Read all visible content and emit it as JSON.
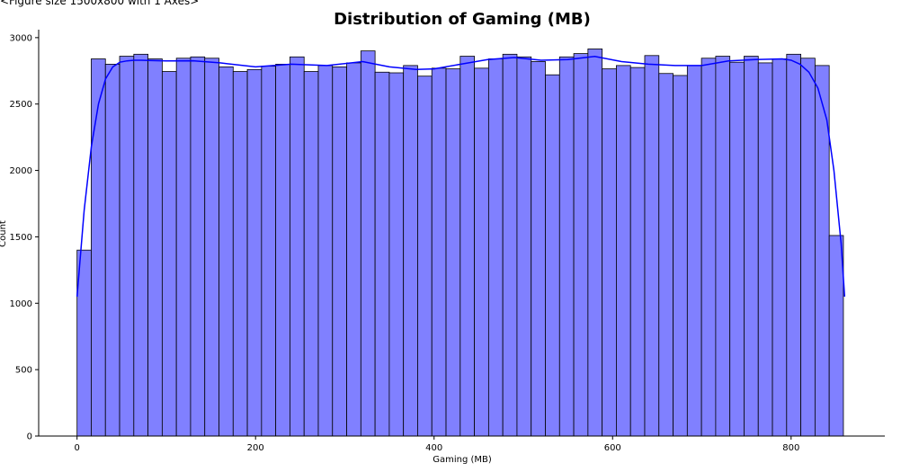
{
  "figure_label": "<Figure size 1500x800 with 1 Axes>",
  "chart_data": {
    "type": "bar",
    "title": "Distribution of Gaming (MB)",
    "xlabel": "Gaming (MB)",
    "ylabel": "Count",
    "xlim": [
      -43,
      905
    ],
    "ylim": [
      0,
      3060
    ],
    "xticks": [
      0,
      200,
      400,
      600,
      800
    ],
    "yticks": [
      0,
      500,
      1000,
      1500,
      2000,
      2500,
      3000
    ],
    "grid": false,
    "bar_color": "#8080ff",
    "bar_edge_color": "#000000",
    "kde_color": "#0000ff",
    "bins": {
      "start": 0,
      "width": 15.9,
      "counts": [
        1400,
        2840,
        2800,
        2860,
        2875,
        2840,
        2745,
        2845,
        2855,
        2845,
        2780,
        2745,
        2760,
        2785,
        2800,
        2855,
        2745,
        2790,
        2780,
        2810,
        2900,
        2740,
        2735,
        2790,
        2710,
        2770,
        2765,
        2860,
        2770,
        2840,
        2875,
        2855,
        2820,
        2720,
        2855,
        2880,
        2915,
        2765,
        2790,
        2775,
        2865,
        2730,
        2715,
        2790,
        2845,
        2860,
        2815,
        2860,
        2810,
        2840,
        2875,
        2845,
        2790,
        1510
      ]
    },
    "kde": {
      "x": [
        0,
        8,
        16,
        24,
        32,
        40,
        48,
        56,
        64,
        72,
        80,
        100,
        130,
        160,
        200,
        240,
        280,
        320,
        350,
        380,
        400,
        430,
        460,
        490,
        520,
        550,
        580,
        610,
        640,
        670,
        700,
        730,
        760,
        790,
        800,
        810,
        820,
        830,
        840,
        848,
        856,
        860
      ],
      "y": [
        1050,
        1700,
        2180,
        2500,
        2690,
        2780,
        2815,
        2825,
        2830,
        2830,
        2828,
        2825,
        2826,
        2810,
        2780,
        2800,
        2790,
        2820,
        2780,
        2760,
        2765,
        2800,
        2835,
        2850,
        2830,
        2835,
        2858,
        2820,
        2800,
        2790,
        2790,
        2825,
        2835,
        2840,
        2830,
        2800,
        2740,
        2620,
        2380,
        2000,
        1450,
        1050
      ]
    }
  }
}
